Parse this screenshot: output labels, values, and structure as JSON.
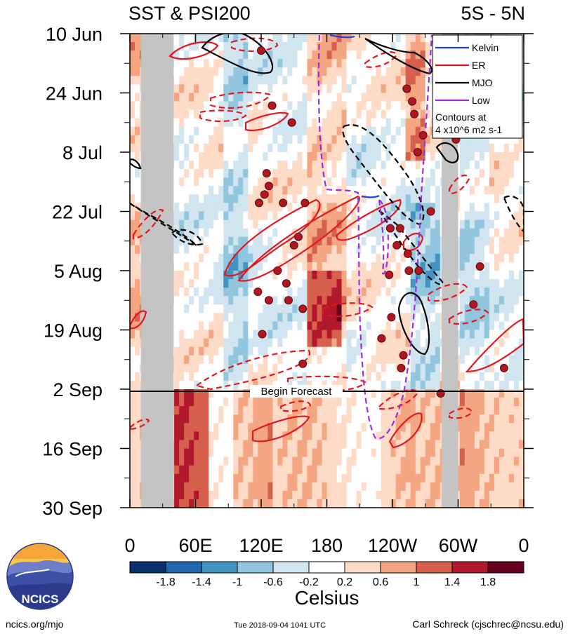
{
  "chart_data": {
    "type": "heatmap",
    "title_left": "SST & PSI200",
    "title_right": "5S - 5N",
    "x_tick_labels": [
      "0",
      "60E",
      "120E",
      "180",
      "120W",
      "60W",
      "0"
    ],
    "x_range_deg_east": [
      0,
      360
    ],
    "y_tick_labels": [
      "10 Jun",
      "24 Jun",
      "8 Jul",
      "22 Jul",
      "5 Aug",
      "19 Aug",
      "2 Sep",
      "16 Sep",
      "30 Sep"
    ],
    "y_range_days": [
      0,
      112
    ],
    "forecast_label": "Begin Forecast",
    "forecast_day": 84,
    "legend": {
      "entries": [
        {
          "label": "Kelvin",
          "color": "#1f3fd6"
        },
        {
          "label": "ER",
          "color": "#e3171d"
        },
        {
          "label": "MJO",
          "color": "#000000"
        },
        {
          "label": "Low",
          "color": "#9b2fd9"
        }
      ],
      "note_line1": "Contours at",
      "note_line2": "4 x10^6 m2 s-1"
    },
    "colorbar": {
      "tick_labels": [
        "-1.8",
        "-1.4",
        "-1",
        "-0.6",
        "-0.2",
        "0.2",
        "0.6",
        "1",
        "1.4",
        "1.8"
      ],
      "colors": [
        "#08306b",
        "#2166ac",
        "#4393c3",
        "#92c5de",
        "#d1e5f0",
        "#ffffff",
        "#fddbc7",
        "#f4a582",
        "#d6604d",
        "#b2182b",
        "#67001f"
      ],
      "unit_label": "Celsius"
    },
    "land_masks_deg": [
      [
        10,
        40
      ],
      [
        285,
        300
      ]
    ]
  },
  "footer": {
    "url": "ncics.org/mjo",
    "timestamp": "Tue 2018-09-04 1041 UTC",
    "author": "Carl Schreck (cjschrec@ncsu.edu)",
    "logo_text": "NCICS"
  }
}
